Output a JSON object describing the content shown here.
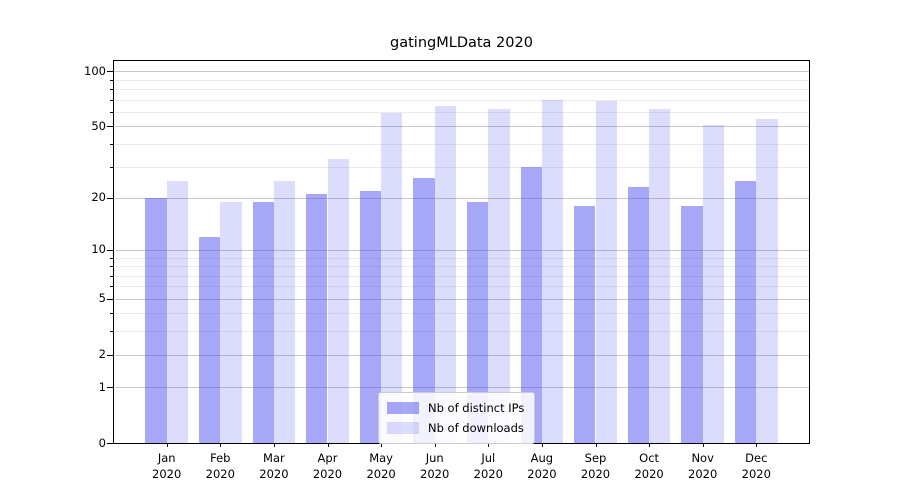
{
  "title": "gatingMLData 2020",
  "colors": {
    "ips_fill": "rgba(80,80,240,0.5)",
    "downloads_fill": "rgba(80,80,240,0.2)",
    "grid_major": "#c9c9c9",
    "grid_minor": "#ebebeb",
    "axis_line": "#000000",
    "legend_border": "#cccccc"
  },
  "legend": {
    "items": [
      {
        "label": "Nb of distinct IPs"
      },
      {
        "label": "Nb of downloads"
      }
    ]
  },
  "chart_data": {
    "type": "bar",
    "title": "gatingMLData 2020",
    "categories": [
      "Jan 2020",
      "Feb 2020",
      "Mar 2020",
      "Apr 2020",
      "May 2020",
      "Jun 2020",
      "Jul 2020",
      "Aug 2020",
      "Sep 2020",
      "Oct 2020",
      "Nov 2020",
      "Dec 2020"
    ],
    "series": [
      {
        "name": "Nb of distinct IPs",
        "values": [
          20,
          12,
          19,
          21,
          22,
          26,
          19,
          30,
          18,
          23,
          18,
          25
        ]
      },
      {
        "name": "Nb of downloads",
        "values": [
          25,
          19,
          25,
          33,
          59,
          65,
          62,
          70,
          69,
          62,
          51,
          55
        ]
      }
    ],
    "yscale": "log10(1+v)",
    "ylim": [
      0,
      115
    ],
    "yticks": [
      0,
      1,
      2,
      5,
      10,
      20,
      50,
      100
    ],
    "yticks_minor": [
      3,
      4,
      6,
      7,
      8,
      9,
      30,
      40,
      60,
      70,
      80,
      90
    ],
    "grid": "horizontal",
    "legend_position": "lower center"
  }
}
